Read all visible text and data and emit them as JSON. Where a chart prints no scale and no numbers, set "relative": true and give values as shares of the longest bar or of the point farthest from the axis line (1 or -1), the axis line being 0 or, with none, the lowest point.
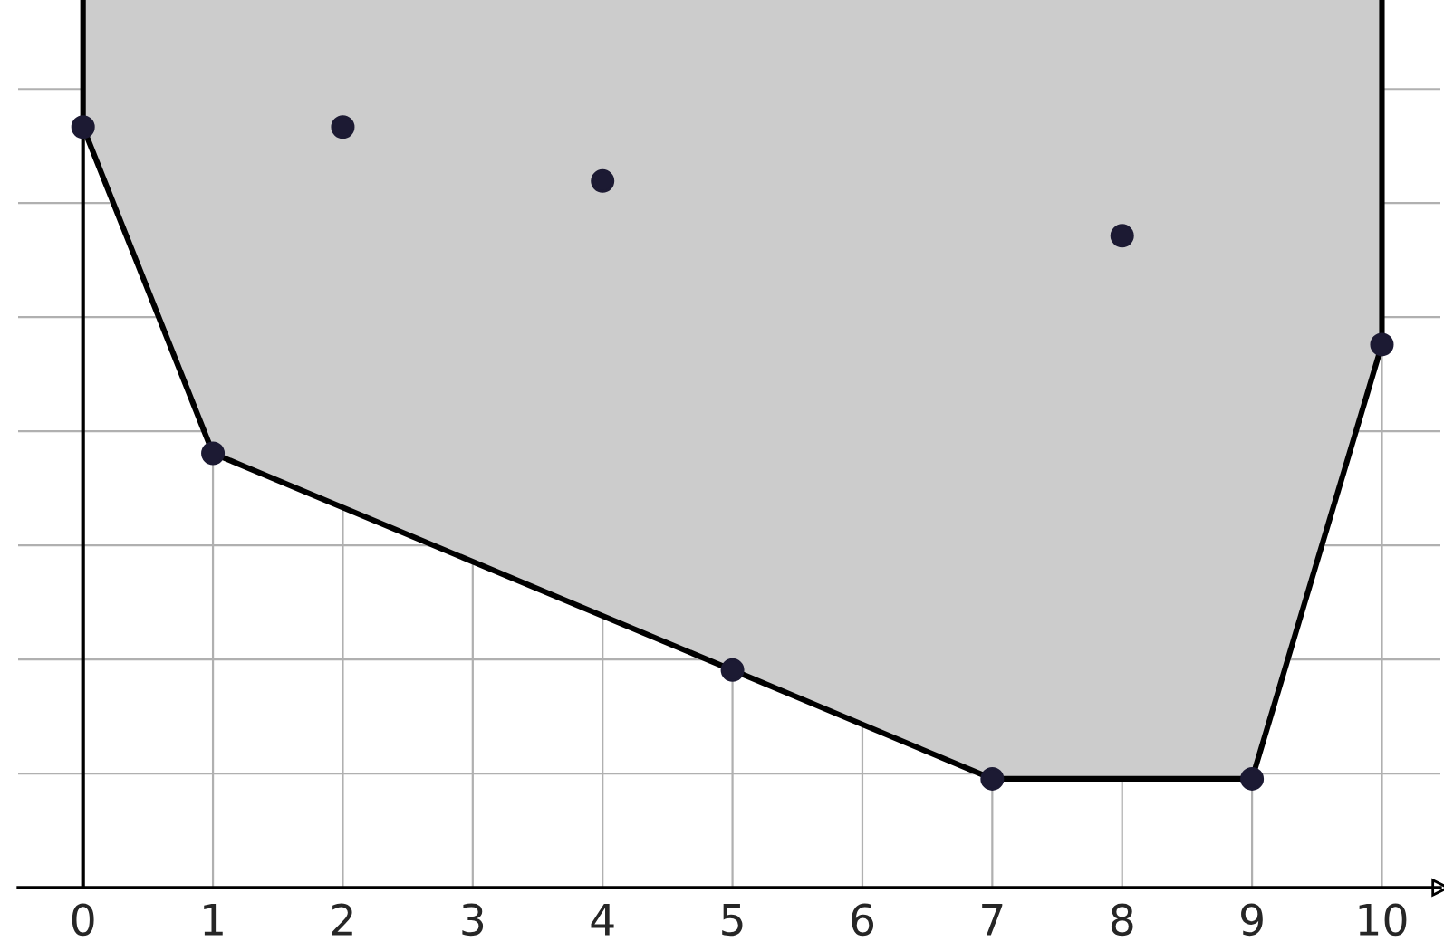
{
  "chart_data": {
    "type": "scatter",
    "relative": true,
    "series": [
      {
        "type": "area",
        "color": "#cccccc",
        "x": [
          0,
          1,
          5,
          7,
          9,
          10
        ],
        "values": [
          1,
          0.571,
          0.286,
          0.143,
          0.143,
          0.714
        ]
      },
      {
        "color": "#1c1a33",
        "marker": "circle",
        "x": [
          0,
          1,
          2,
          4,
          5,
          7,
          8,
          9,
          10
        ],
        "values": [
          1,
          0.571,
          1,
          0.929,
          0.286,
          0.143,
          0.857,
          0.143,
          0.714
        ]
      }
    ],
    "xlim": [
      -0.5,
      10.45
    ],
    "xticks": [
      0,
      1,
      2,
      3,
      4,
      5,
      6,
      7,
      8,
      9,
      10
    ],
    "grid": true
  }
}
